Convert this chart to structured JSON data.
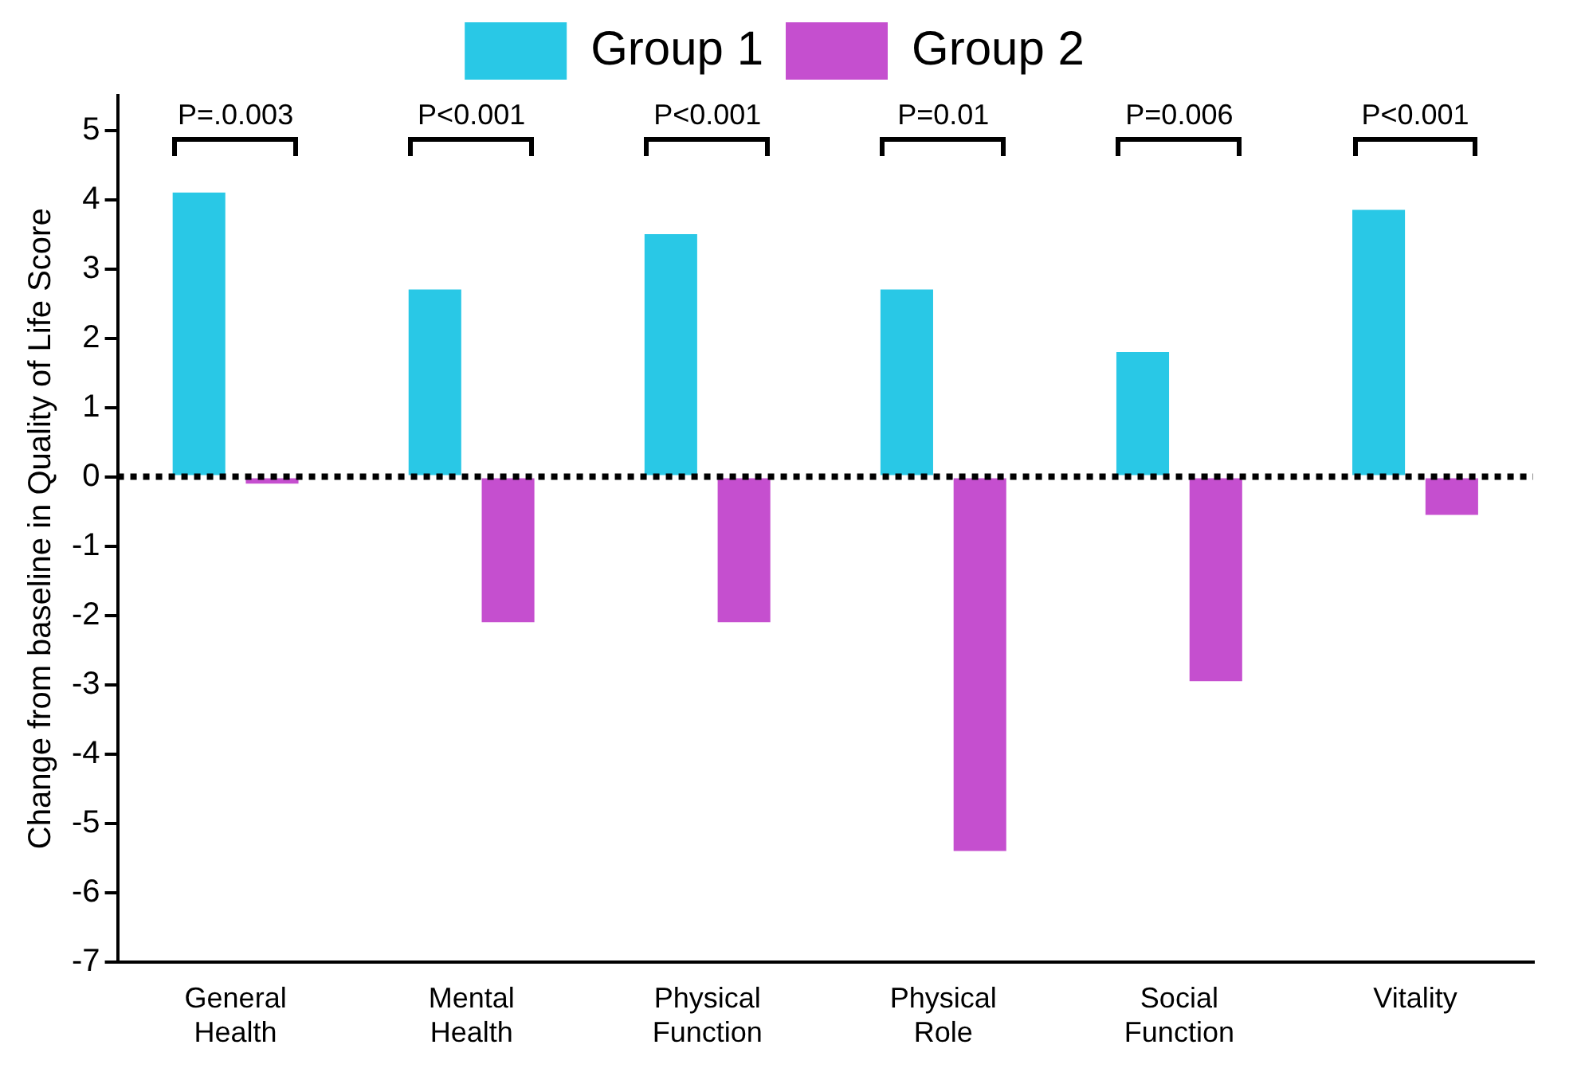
{
  "chart_data": {
    "type": "bar",
    "ylabel": "Change from baseline in Quality of Life Score",
    "categories": [
      "General Health",
      "Mental Health",
      "Physical Function",
      "Physical Role",
      "Social Function",
      "Vitality"
    ],
    "series": [
      {
        "name": "Group 1",
        "color": "#29c8e6",
        "values": [
          4.1,
          2.7,
          3.5,
          2.7,
          1.8,
          3.85
        ]
      },
      {
        "name": "Group 2",
        "color": "#c54fcf",
        "values": [
          -0.1,
          -2.1,
          -2.1,
          -5.4,
          -2.95,
          -0.55
        ]
      }
    ],
    "ylim": [
      -7,
      5.5
    ],
    "yticks": [
      -7,
      -6,
      -5,
      -4,
      -3,
      -2,
      -1,
      0,
      1,
      2,
      3,
      4,
      5
    ],
    "grid": false,
    "legend": "top",
    "ref_lines": [
      {
        "axis": "y",
        "value": 0,
        "color": "#000000",
        "line_style": "dotted"
      }
    ],
    "annotations": [
      "P=.0.003",
      "P<0.001",
      "P<0.001",
      "P=0.01",
      "P=0.006",
      "P<0.001"
    ]
  }
}
